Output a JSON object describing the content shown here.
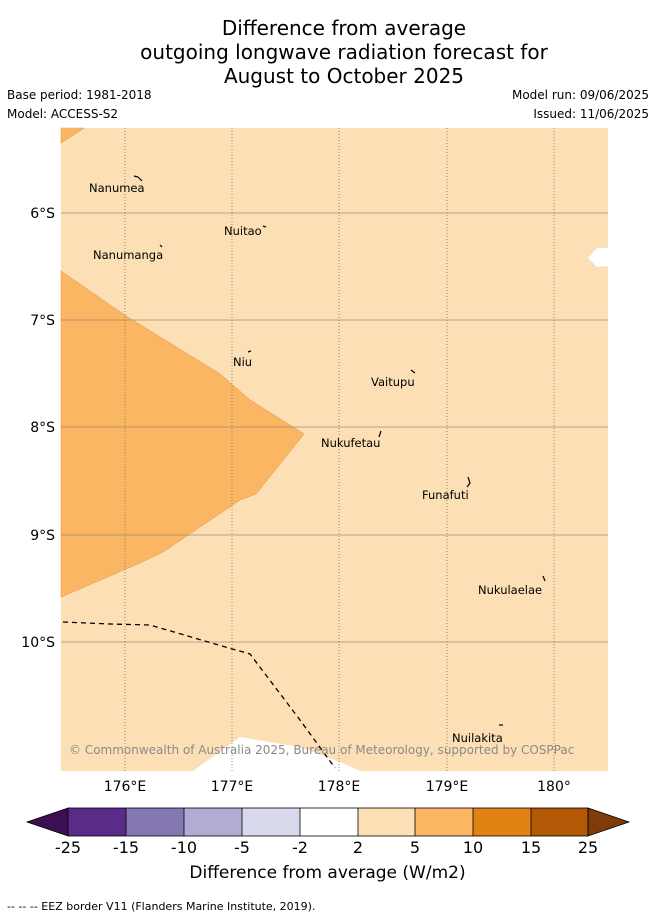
{
  "header": {
    "title_lines": [
      "Difference from average",
      "outgoing longwave radiation forecast for",
      "August to October 2025"
    ],
    "base_period": "Base period: 1981-2018",
    "model": "Model: ACCESS-S2",
    "model_run": "Model run: 09/06/2025",
    "issued": "Issued: 11/06/2025"
  },
  "map": {
    "lat_labels": [
      "6°S",
      "7°S",
      "8°S",
      "9°S",
      "10°S"
    ],
    "lon_labels": [
      "176°E",
      "177°E",
      "178°E",
      "179°E",
      "180°"
    ],
    "islands": [
      {
        "name": "Nanumea"
      },
      {
        "name": "Nuitao"
      },
      {
        "name": "Nanumanga"
      },
      {
        "name": "Niu"
      },
      {
        "name": "Vaitupu"
      },
      {
        "name": "Nukufetau"
      },
      {
        "name": "Funafuti"
      },
      {
        "name": "Nukulaelae"
      },
      {
        "name": "Nuilakita"
      }
    ],
    "credit": "© Commonwealth of Australia 2025, Bureau of Meteorology, supported by COSPPac",
    "colors": {
      "background_fill": "#fddfb5",
      "anomaly_5_10": "#fbb664",
      "land_white": "#ffffff"
    }
  },
  "colorbar": {
    "ticks": [
      "-25",
      "-15",
      "-10",
      "-5",
      "-2",
      "2",
      "5",
      "10",
      "15",
      "25"
    ],
    "colors": [
      "#3b0f52",
      "#5b2b8a",
      "#8578b0",
      "#b2acd4",
      "#d8d9ec",
      "#ffffff",
      "#fddfb5",
      "#fbb664",
      "#e08214",
      "#b35806",
      "#7f3b08"
    ],
    "label": "Difference from average (W/m2)"
  },
  "footer": {
    "legend_text": "--  --  -- EEZ border V11 (Flanders Marine Institute, 2019)."
  }
}
